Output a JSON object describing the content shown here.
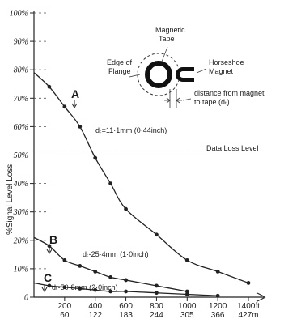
{
  "chart_data": {
    "type": "line",
    "ylabel": "%Signal Level Loss",
    "ylim": [
      0,
      100
    ],
    "xlim": [
      0,
      1400
    ],
    "y_ticks": [
      "0",
      "10%",
      "20%",
      "30%",
      "40%",
      "50%",
      "60%",
      "70%",
      "80%",
      "90%",
      "100%"
    ],
    "x_ticks_ft": [
      "200",
      "400",
      "600",
      "800",
      "1000",
      "1200",
      "1400ft"
    ],
    "x_ticks_m": [
      "60",
      "122",
      "183",
      "244",
      "305",
      "366",
      "427m"
    ],
    "threshold": {
      "label": "Data Loss Level",
      "value": 50
    },
    "series": [
      {
        "name": "A",
        "annotation": "dₜ=11·1mm (0·44inch)",
        "x": [
          0,
          100,
          200,
          300,
          400,
          500,
          600,
          800,
          1000,
          1200,
          1400
        ],
        "values": [
          79,
          74,
          67,
          60,
          49,
          40,
          31,
          22,
          13,
          9,
          5
        ]
      },
      {
        "name": "B",
        "annotation": "dₜ-25·4mm (1·0inch)",
        "x": [
          0,
          100,
          200,
          300,
          400,
          500,
          600,
          800,
          1000
        ],
        "values": [
          21,
          18,
          13,
          11,
          9,
          7,
          6,
          4,
          2
        ]
      },
      {
        "name": "C",
        "annotation": "dₜ-50·8mm (2·0inch)",
        "x": [
          0,
          100,
          200,
          300,
          400,
          500,
          600,
          800,
          1000,
          1200
        ],
        "values": [
          5,
          4,
          3.5,
          3,
          2.5,
          2,
          2,
          1.5,
          1,
          0.5
        ]
      }
    ]
  },
  "diagram": {
    "magnetic_tape_label": "Magnetic Tape",
    "edge_of_flange_label": "Edge of Flange",
    "horseshoe_magnet_label": "Horseshoe Magnet",
    "distance_label": "distance from magnet to tape (dₜ)"
  }
}
